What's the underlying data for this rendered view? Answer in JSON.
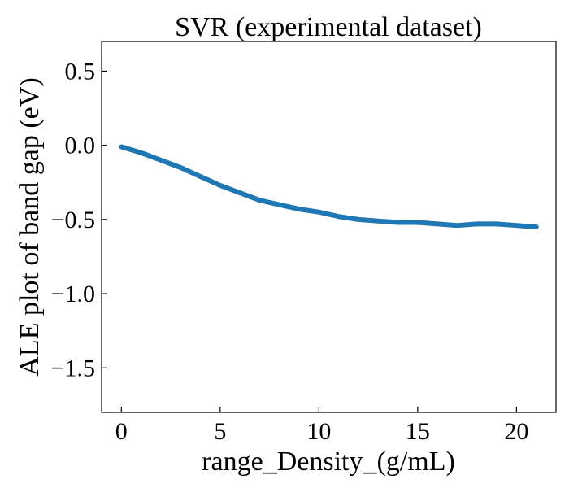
{
  "chart_data": {
    "type": "line",
    "title": "SVR (experimental dataset)",
    "xlabel": "range_Density_(g/mL)",
    "ylabel": "ALE plot of band gap (eV)",
    "xlim": [
      -1.0,
      22.0
    ],
    "ylim": [
      -1.8,
      0.7
    ],
    "xticks": [
      0,
      5,
      10,
      15,
      20
    ],
    "xtick_labels": [
      "0",
      "5",
      "10",
      "15",
      "20"
    ],
    "yticks": [
      0.5,
      0.0,
      -0.5,
      -1.0,
      -1.5
    ],
    "ytick_labels": [
      "0.5",
      "0.0",
      "−0.5",
      "−1.0",
      "−1.5"
    ],
    "grid": false,
    "legend": "none",
    "series": [
      {
        "color": "#1f77b4",
        "x": [
          0,
          1,
          2,
          3,
          4,
          5,
          6,
          7,
          8,
          9,
          10,
          11,
          12,
          13,
          14,
          15,
          16,
          17,
          18,
          19,
          20,
          21
        ],
        "y": [
          -0.01,
          -0.05,
          -0.1,
          -0.15,
          -0.21,
          -0.27,
          -0.32,
          -0.37,
          -0.4,
          -0.43,
          -0.45,
          -0.48,
          -0.5,
          -0.51,
          -0.52,
          -0.52,
          -0.53,
          -0.54,
          -0.53,
          -0.53,
          -0.54,
          -0.55
        ]
      }
    ]
  }
}
